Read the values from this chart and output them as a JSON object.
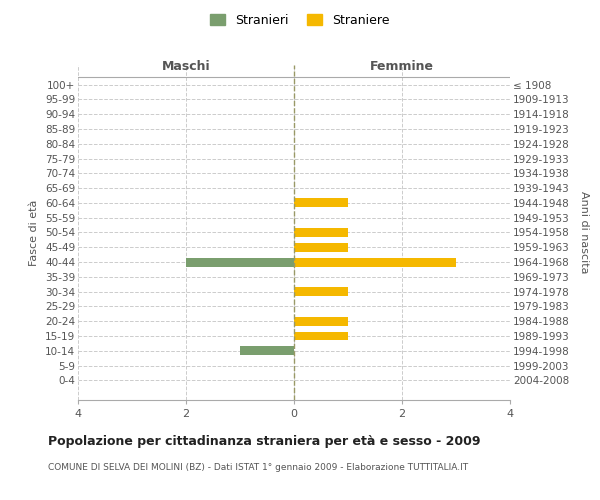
{
  "age_groups": [
    "100+",
    "95-99",
    "90-94",
    "85-89",
    "80-84",
    "75-79",
    "70-74",
    "65-69",
    "60-64",
    "55-59",
    "50-54",
    "45-49",
    "40-44",
    "35-39",
    "30-34",
    "25-29",
    "20-24",
    "15-19",
    "10-14",
    "5-9",
    "0-4"
  ],
  "birth_years": [
    "≤ 1908",
    "1909-1913",
    "1914-1918",
    "1919-1923",
    "1924-1928",
    "1929-1933",
    "1934-1938",
    "1939-1943",
    "1944-1948",
    "1949-1953",
    "1954-1958",
    "1959-1963",
    "1964-1968",
    "1969-1973",
    "1974-1978",
    "1979-1983",
    "1984-1988",
    "1989-1993",
    "1994-1998",
    "1999-2003",
    "2004-2008"
  ],
  "maschi_values": [
    0,
    0,
    0,
    0,
    0,
    0,
    0,
    0,
    0,
    0,
    0,
    0,
    -2,
    0,
    0,
    0,
    0,
    0,
    -1,
    0,
    0
  ],
  "femmine_values": [
    0,
    0,
    0,
    0,
    0,
    0,
    0,
    0,
    1,
    0,
    1,
    1,
    3,
    0,
    1,
    0,
    1,
    1,
    0,
    0,
    0
  ],
  "male_color": "#7a9e6e",
  "female_color": "#f5b800",
  "xlim": [
    -4,
    4
  ],
  "title": "Popolazione per cittadinanza straniera per età e sesso - 2009",
  "subtitle": "COMUNE DI SELVA DEI MOLINI (BZ) - Dati ISTAT 1° gennaio 2009 - Elaborazione TUTTITALIA.IT",
  "ylabel_left": "Fasce di età",
  "ylabel_right": "Anni di nascita",
  "xlabel_left": "Maschi",
  "xlabel_top": "Femmine",
  "legend_male": "Stranieri",
  "legend_female": "Straniere",
  "background_color": "#ffffff",
  "grid_color": "#cccccc",
  "center_line_color": "#999966",
  "xticks": [
    -4,
    -2,
    0,
    2,
    4
  ],
  "xtick_labels": [
    "4",
    "2",
    "0",
    "2",
    "4"
  ]
}
